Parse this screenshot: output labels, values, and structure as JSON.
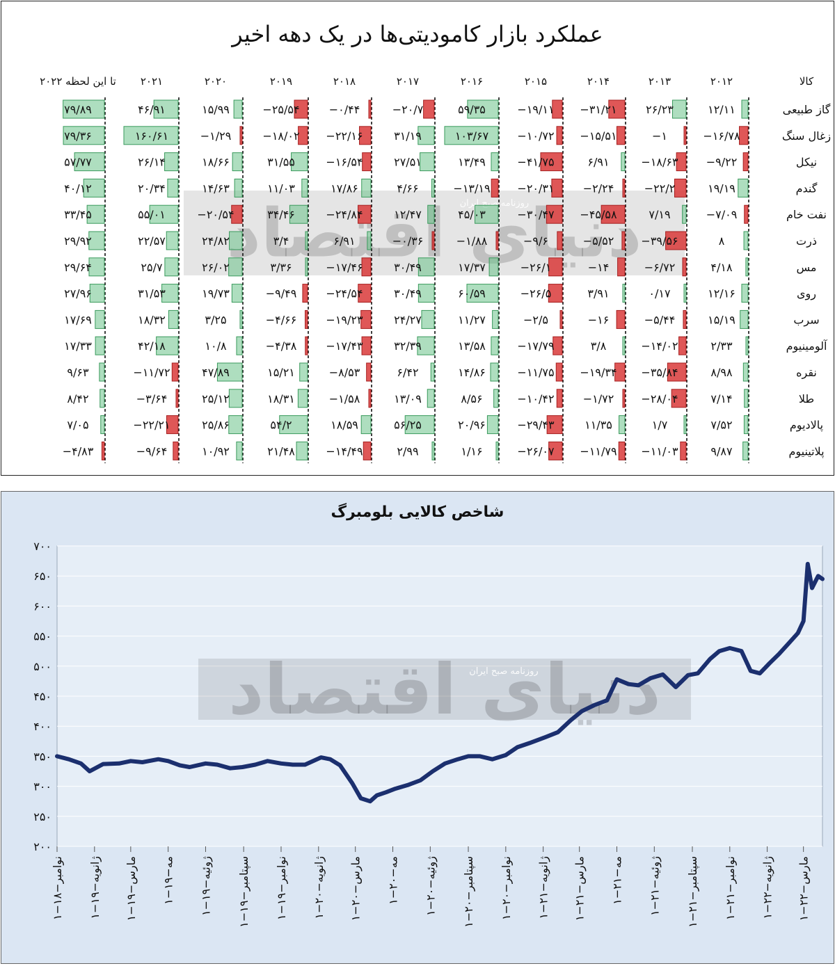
{
  "table": {
    "title": "عملکرد بازار کامودیتی‌ها در یک دهه اخیر",
    "row_header": "کالا",
    "columns": [
      "۲۰۱۲",
      "۲۰۱۳",
      "۲۰۱۴",
      "۲۰۱۵",
      "۲۰۱۶",
      "۲۰۱۷",
      "۲۰۱۸",
      "۲۰۱۹",
      "۲۰۲۰",
      "۲۰۲۱",
      "تا این لحظه ۲۰۲۲"
    ],
    "rows": [
      {
        "name": "گاز طبیعی",
        "cells": [
          "۱۲/۱۱",
          "۲۶/۲۳",
          "−۳۱/۲۱",
          "−۱۹/۱۱",
          "۵۹/۳۵",
          "−۲۰/۷",
          "−۰/۴۴",
          "−۲۵/۵۴",
          "۱۵/۹۹",
          "۴۶/۹۱",
          "۷۹/۸۹"
        ],
        "values": [
          12.11,
          26.23,
          -31.21,
          -19.11,
          59.35,
          -20.7,
          -0.44,
          -25.54,
          15.99,
          46.91,
          79.89
        ]
      },
      {
        "name": "زغال سنگ",
        "cells": [
          "−۱۶/۷۸",
          "−۱",
          "−۱۵/۵۱",
          "−۱۰/۷۲",
          "۱۰۳/۶۷",
          "۳۱/۱۹",
          "−۲۲/۱۶",
          "−۱۸/۰۲",
          "−۱/۲۹",
          "۱۶۰/۶۱",
          "۷۹/۳۶"
        ],
        "values": [
          -16.78,
          -1,
          -15.51,
          -10.72,
          103.67,
          31.19,
          -22.16,
          -18.02,
          -1.29,
          160.61,
          79.36
        ]
      },
      {
        "name": "نیکل",
        "cells": [
          "−۹/۲۲",
          "−۱۸/۶۳",
          "۶/۹۱",
          "−۴۱/۷۵",
          "۱۳/۴۹",
          "۲۷/۵۱",
          "−۱۶/۵۴",
          "۳۱/۵۵",
          "۱۸/۶۶",
          "۲۶/۱۴",
          "۵۷/۷۷"
        ],
        "values": [
          -9.22,
          -18.63,
          6.91,
          -41.75,
          13.49,
          27.51,
          -16.54,
          31.55,
          18.66,
          26.14,
          57.77
        ]
      },
      {
        "name": "گندم",
        "cells": [
          "۱۹/۱۹",
          "−۲۲/۲",
          "−۲/۲۴",
          "−۲۰/۳۱",
          "−۱۳/۱۹",
          "۴/۶۶",
          "۱۷/۸۶",
          "۱۱/۰۳",
          "۱۴/۶۳",
          "۲۰/۳۴",
          "۴۰/۱۲"
        ],
        "values": [
          19.19,
          -22.2,
          -2.24,
          -20.31,
          -13.19,
          4.66,
          17.86,
          11.03,
          14.63,
          20.34,
          40.12
        ]
      },
      {
        "name": "نفت خام",
        "cells": [
          "−۷/۰۹",
          "۷/۱۹",
          "−۴۵/۵۸",
          "−۳۰/۴۷",
          "۴۵/۰۳",
          "۱۲/۴۷",
          "−۲۴/۸۴",
          "۳۴/۴۶",
          "−۲۰/۵۴",
          "۵۵/۰۱",
          "۳۳/۴۵"
        ],
        "values": [
          -7.09,
          7.19,
          -45.58,
          -30.47,
          45.03,
          12.47,
          -24.84,
          34.46,
          -20.54,
          55.01,
          33.45
        ]
      },
      {
        "name": "ذرت",
        "cells": [
          "۸",
          "−۳۹/۵۶",
          "−۵/۵۲",
          "−۹/۶",
          "−۱/۸۸",
          "−۰/۳۶",
          "۶/۹۱",
          "۳/۴",
          "۲۴/۸۲",
          "۲۲/۵۷",
          "۲۹/۹۲"
        ],
        "values": [
          8,
          -39.56,
          -5.52,
          -9.6,
          -1.88,
          -0.36,
          6.91,
          3.4,
          24.82,
          22.57,
          29.92
        ]
      },
      {
        "name": "مس",
        "cells": [
          "۴/۱۸",
          "−۶/۷۲",
          "−۱۴",
          "−۲۶/۱",
          "۱۷/۳۷",
          "۳۰/۴۹",
          "−۱۷/۴۶",
          "۳/۳۶",
          "۲۶/۰۲",
          "۲۵/۷",
          "۲۹/۶۴"
        ],
        "values": [
          4.18,
          -6.72,
          -14,
          -26.1,
          17.37,
          30.49,
          -17.46,
          3.36,
          26.02,
          25.7,
          29.64
        ]
      },
      {
        "name": "روی",
        "cells": [
          "۱۲/۱۶",
          "۰/۱۷",
          "۳/۹۱",
          "−۲۶/۵",
          "۶۰/۵۹",
          "۳۰/۴۹",
          "−۲۴/۵۴",
          "−۹/۴۹",
          "۱۹/۷۳",
          "۳۱/۵۳",
          "۲۷/۹۶"
        ],
        "values": [
          12.16,
          0.17,
          3.91,
          -26.5,
          60.59,
          30.49,
          -24.54,
          -9.49,
          19.73,
          31.53,
          27.96
        ]
      },
      {
        "name": "سرب",
        "cells": [
          "۱۵/۱۹",
          "−۵/۴۴",
          "−۱۶",
          "−۲/۵",
          "۱۱/۲۷",
          "۲۴/۲۷",
          "−۱۹/۲۳",
          "−۴/۶۶",
          "۳/۲۵",
          "۱۸/۳۲",
          "۱۷/۶۹"
        ],
        "values": [
          15.19,
          -5.44,
          -16,
          -2.5,
          11.27,
          24.27,
          -19.23,
          -4.66,
          3.25,
          18.32,
          17.69
        ]
      },
      {
        "name": "آلومینیوم",
        "cells": [
          "۲/۳۳",
          "−۱۴/۰۲",
          "۳/۸",
          "−۱۷/۷۹",
          "۱۳/۵۸",
          "۳۲/۳۹",
          "−۱۷/۴۳",
          "−۴/۳۸",
          "۱۰/۸",
          "۴۲/۱۸",
          "۱۷/۳۳"
        ],
        "values": [
          2.33,
          -14.02,
          3.8,
          -17.79,
          13.58,
          32.39,
          -17.43,
          -4.38,
          10.8,
          42.18,
          17.33
        ]
      },
      {
        "name": "نقره",
        "cells": [
          "۸/۹۸",
          "−۳۵/۸۴",
          "−۱۹/۳۴",
          "−۱۱/۷۵",
          "۱۴/۸۶",
          "۶/۴۲",
          "−۸/۵۳",
          "۱۵/۲۱",
          "۴۷/۸۹",
          "−۱۱/۷۲",
          "۹/۶۳"
        ],
        "values": [
          8.98,
          -35.84,
          -19.34,
          -11.75,
          14.86,
          6.42,
          -8.53,
          15.21,
          47.89,
          -11.72,
          9.63
        ]
      },
      {
        "name": "طلا",
        "cells": [
          "۷/۱۴",
          "−۲۸/۰۴",
          "−۱/۷۲",
          "−۱۰/۴۲",
          "۸/۵۶",
          "۱۳/۰۹",
          "−۱/۵۸",
          "۱۸/۳۱",
          "۲۵/۱۲",
          "−۳/۶۴",
          "۸/۴۲"
        ],
        "values": [
          7.14,
          -28.04,
          -1.72,
          -10.42,
          8.56,
          13.09,
          -1.58,
          18.31,
          25.12,
          -3.64,
          8.42
        ]
      },
      {
        "name": "پالادیوم",
        "cells": [
          "۷/۵۲",
          "۱/۷",
          "۱۱/۳۵",
          "−۲۹/۴۳",
          "۲۰/۹۶",
          "۵۶/۲۵",
          "۱۸/۵۹",
          "۵۴/۲",
          "۲۵/۸۶",
          "−۲۲/۲۱",
          "۷/۰۵"
        ],
        "values": [
          7.52,
          1.7,
          11.35,
          -29.43,
          20.96,
          56.25,
          18.59,
          54.2,
          25.86,
          -22.21,
          7.05
        ]
      },
      {
        "name": "پلاتینیوم",
        "cells": [
          "۹/۸۷",
          "−۱۱/۰۳",
          "−۱۱/۷۹",
          "−۲۶/۰۷",
          "۱/۱۶",
          "۲/۹۹",
          "−۱۴/۴۹",
          "۲۱/۴۸",
          "۱۰/۹۲",
          "−۹/۶۴",
          "−۴/۸۳"
        ],
        "values": [
          9.87,
          -11.03,
          -11.79,
          -26.07,
          1.16,
          2.99,
          -14.49,
          21.48,
          10.92,
          -9.64,
          -4.83
        ]
      }
    ],
    "colors": {
      "positive": "#6cc28a",
      "negative": "#d93a3a"
    }
  },
  "watermark": {
    "brand": "دنیای اقتصاد",
    "subtitle": "روزنامه صبح ایران"
  },
  "chart_data": {
    "type": "line",
    "title": "شاخص کالایی بلومبرگ",
    "ylim": [
      200,
      700
    ],
    "y_ticks": [
      "۲۰۰",
      "۲۵۰",
      "۳۰۰",
      "۳۵۰",
      "۴۰۰",
      "۴۵۰",
      "۵۰۰",
      "۵۵۰",
      "۶۰۰",
      "۶۵۰",
      "۷۰۰"
    ],
    "x_labels": [
      "۱−نوامبر−۱۸",
      "۱−ژانویه−۱۹",
      "۱−مارس−۱۹",
      "۱−مه−۱۹",
      "۱−ژوئیه−۱۹",
      "۱−سپتامبر−۱۹",
      "۱−نوامبر−۱۹",
      "۱−ژانویه−۲۰",
      "۱−مارس−۲۰",
      "۱−مه−۲۰",
      "۱−ژوئیه−۲۰",
      "۱−سپتامبر−۲۰",
      "۱−نوامبر−۲۰",
      "۱−ژانویه−۲۱",
      "۱−مارس−۲۱",
      "۱−مه−۲۱",
      "۱−ژوئیه−۲۱",
      "۱−سپتامبر−۲۱",
      "۱−نوامبر−۲۱",
      "۱−ژانویه−۲۲",
      "۱−مارس−۲۲"
    ],
    "series": [
      {
        "color": "#1b2f6e",
        "x": [
          "2018-11-01",
          "2018-11-20",
          "2018-12-10",
          "2018-12-24",
          "2019-01-15",
          "2019-02-10",
          "2019-03-01",
          "2019-03-20",
          "2019-04-15",
          "2019-05-01",
          "2019-05-20",
          "2019-06-05",
          "2019-07-01",
          "2019-07-20",
          "2019-08-10",
          "2019-08-30",
          "2019-09-20",
          "2019-10-10",
          "2019-11-01",
          "2019-11-20",
          "2019-12-10",
          "2020-01-05",
          "2020-01-20",
          "2020-02-05",
          "2020-02-25",
          "2020-03-10",
          "2020-03-25",
          "2020-04-05",
          "2020-04-20",
          "2020-05-05",
          "2020-05-25",
          "2020-06-15",
          "2020-07-05",
          "2020-07-25",
          "2020-08-15",
          "2020-09-01",
          "2020-09-20",
          "2020-10-10",
          "2020-11-01",
          "2020-11-20",
          "2020-12-10",
          "2021-01-05",
          "2021-01-25",
          "2021-02-15",
          "2021-03-05",
          "2021-03-25",
          "2021-04-15",
          "2021-05-01",
          "2021-05-20",
          "2021-06-05",
          "2021-06-25",
          "2021-07-15",
          "2021-08-05",
          "2021-08-25",
          "2021-09-10",
          "2021-09-30",
          "2021-10-15",
          "2021-11-01",
          "2021-11-20",
          "2021-12-05",
          "2021-12-20",
          "2022-01-05",
          "2022-01-20",
          "2022-02-05",
          "2022-02-20",
          "2022-03-01",
          "2022-03-08",
          "2022-03-15",
          "2022-03-25",
          "2022-04-01"
        ],
        "y": [
          350,
          345,
          338,
          325,
          337,
          338,
          342,
          340,
          345,
          342,
          335,
          332,
          338,
          336,
          330,
          332,
          336,
          342,
          338,
          336,
          336,
          348,
          345,
          335,
          305,
          280,
          275,
          285,
          290,
          296,
          302,
          310,
          325,
          338,
          345,
          350,
          350,
          345,
          352,
          365,
          372,
          382,
          390,
          410,
          425,
          435,
          443,
          478,
          470,
          468,
          480,
          486,
          465,
          485,
          488,
          512,
          525,
          530,
          525,
          492,
          488,
          505,
          520,
          538,
          555,
          575,
          670,
          630,
          650,
          645
        ]
      }
    ]
  }
}
